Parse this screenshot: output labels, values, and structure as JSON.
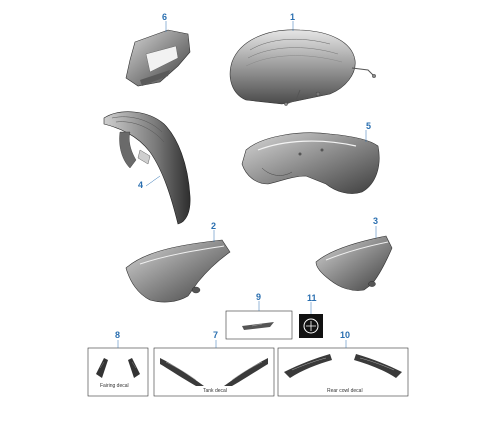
{
  "callouts": {
    "p1": "1",
    "p2": "2",
    "p3": "3",
    "p4": "4",
    "p5": "5",
    "p6": "6",
    "p8": "8",
    "p7": "7",
    "p9": "9",
    "p10": "10",
    "p11": "11"
  },
  "captions": {
    "p8": "Fairing decal",
    "p7": "Tank decal",
    "p10": "Rear cowl decal"
  },
  "colors": {
    "callout": "#2a6fb0",
    "part_dark": "#4a4a4a",
    "part_mid": "#8c8c8c",
    "part_light": "#d4d4d4",
    "leader": "#2a6fb0"
  }
}
